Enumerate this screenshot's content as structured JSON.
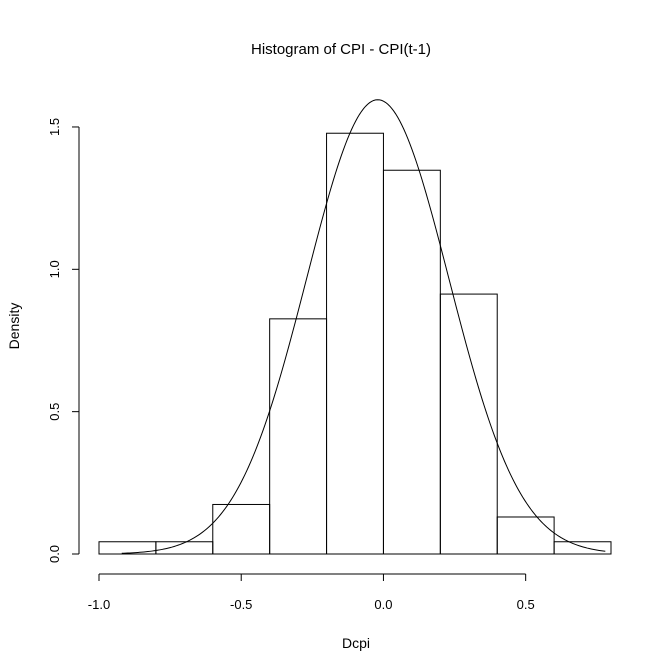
{
  "chart_data": {
    "type": "histogram",
    "title": "Histogram of CPI - CPI(t-1)",
    "xlabel": "Dcpi",
    "ylabel": "Density",
    "xlim": [
      -1.0,
      0.8
    ],
    "ylim": [
      0,
      1.6
    ],
    "x_axis_range": [
      -1.0,
      0.5
    ],
    "y_axis_range": [
      0,
      1.5
    ],
    "x_ticks": [
      -1.0,
      -0.5,
      0.0,
      0.5
    ],
    "x_tick_labels": [
      "-1.0",
      "-0.5",
      "0.0",
      "0.5"
    ],
    "y_ticks": [
      0.0,
      0.5,
      1.0,
      1.5
    ],
    "y_tick_labels": [
      "0.0",
      "0.5",
      "1.0",
      "1.5"
    ],
    "bins": [
      {
        "start": -1.0,
        "end": -0.8,
        "density": 0.043
      },
      {
        "start": -0.8,
        "end": -0.6,
        "density": 0.043
      },
      {
        "start": -0.6,
        "end": -0.4,
        "density": 0.174
      },
      {
        "start": -0.4,
        "end": -0.2,
        "density": 0.826
      },
      {
        "start": -0.2,
        "end": 0.0,
        "density": 1.478
      },
      {
        "start": 0.0,
        "end": 0.2,
        "density": 1.348
      },
      {
        "start": 0.2,
        "end": 0.4,
        "density": 0.913
      },
      {
        "start": 0.4,
        "end": 0.6,
        "density": 0.13
      },
      {
        "start": 0.6,
        "end": 0.8,
        "density": 0.043
      }
    ],
    "density_curve": {
      "type": "normal",
      "mean": -0.02,
      "sd": 0.25,
      "x_range": [
        -0.92,
        0.78
      ]
    },
    "grid": false,
    "legend": "none"
  }
}
